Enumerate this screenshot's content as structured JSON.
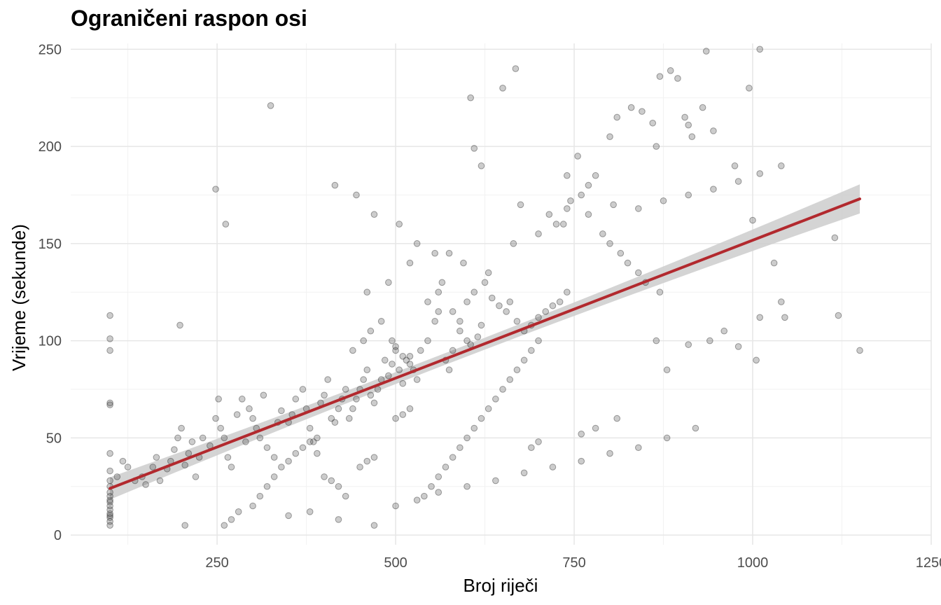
{
  "chart_data": {
    "type": "scatter",
    "title": "Ograničeni raspon osi",
    "xlabel": "Broj riječi",
    "ylabel": "Vrijeme (sekunde)",
    "xlim": [
      45,
      1250
    ],
    "ylim": [
      -5,
      253
    ],
    "x_ticks": [
      "250",
      "500",
      "750",
      "1000",
      "1250"
    ],
    "y_ticks": [
      "0",
      "50",
      "100",
      "150",
      "200",
      "250"
    ],
    "grid": true,
    "point_color": "#333333",
    "point_opacity": 0.25,
    "smooth": {
      "method": "linear",
      "color": "#b2292e",
      "band_color": "#cccccc",
      "x": [
        100,
        1150
      ],
      "y": [
        24,
        173
      ],
      "band_halfwidth": [
        3,
        7.5
      ]
    },
    "points": {
      "x": [
        100,
        100,
        100,
        100,
        100,
        100,
        100,
        100,
        100,
        100,
        100,
        100,
        100,
        100,
        100,
        100,
        100,
        100,
        100,
        100,
        110,
        118,
        125,
        135,
        145,
        150,
        160,
        165,
        170,
        180,
        185,
        190,
        195,
        200,
        205,
        210,
        215,
        220,
        225,
        230,
        198,
        205,
        240,
        248,
        255,
        260,
        265,
        270,
        278,
        285,
        290,
        295,
        300,
        305,
        310,
        315,
        320,
        330,
        335,
        340,
        248,
        252,
        262,
        325,
        350,
        355,
        360,
        370,
        375,
        380,
        385,
        390,
        395,
        400,
        405,
        410,
        415,
        420,
        425,
        430,
        435,
        440,
        445,
        450,
        455,
        460,
        465,
        470,
        475,
        480,
        485,
        490,
        495,
        500,
        505,
        510,
        515,
        520,
        525,
        530,
        440,
        455,
        465,
        480,
        495,
        500,
        510,
        520,
        535,
        545,
        555,
        560,
        570,
        575,
        580,
        590,
        600,
        605,
        615,
        620,
        545,
        560,
        565,
        580,
        590,
        600,
        610,
        625,
        635,
        645,
        655,
        660,
        670,
        680,
        690,
        700,
        710,
        720,
        730,
        740,
        605,
        610,
        620,
        650,
        668,
        675,
        715,
        725,
        740,
        745,
        760,
        770,
        780,
        790,
        800,
        815,
        825,
        840,
        850,
        870,
        740,
        755,
        800,
        810,
        830,
        845,
        860,
        865,
        870,
        885,
        895,
        905,
        910,
        915,
        930,
        935,
        945,
        975,
        995,
        1010,
        1000,
        1010,
        1030,
        1040,
        1045,
        1115,
        1120,
        1150,
        980,
        1005,
        960,
        940,
        910,
        880,
        865,
        810,
        780,
        760,
        700,
        690,
        400,
        410,
        420,
        430,
        450,
        460,
        470,
        300,
        310,
        320,
        330,
        340,
        350,
        360,
        370,
        380,
        390,
        260,
        270,
        280,
        540,
        550,
        560,
        570,
        580,
        590,
        600,
        610,
        620,
        630,
        640,
        650,
        660,
        670,
        680,
        690,
        700,
        500,
        510,
        520,
        350,
        380,
        420,
        470,
        500,
        530,
        560,
        600,
        640,
        680,
        720,
        760,
        800,
        840,
        880,
        920,
        460,
        490,
        520,
        555,
        415,
        445,
        470,
        505,
        530,
        575,
        595,
        630,
        665,
        700,
        735,
        770,
        805,
        840,
        875,
        910,
        945,
        980,
        1010,
        1040
      ],
      "y": [
        5,
        7,
        9,
        11,
        13,
        15,
        17,
        20,
        22,
        25,
        28,
        33,
        42,
        67,
        68,
        95,
        101,
        113,
        10,
        18,
        30,
        38,
        35,
        28,
        30,
        26,
        35,
        40,
        28,
        34,
        38,
        44,
        50,
        55,
        36,
        42,
        48,
        30,
        40,
        50,
        108,
        5,
        46,
        60,
        55,
        50,
        40,
        35,
        62,
        70,
        48,
        65,
        60,
        55,
        50,
        72,
        45,
        40,
        58,
        64,
        178,
        70,
        160,
        221,
        58,
        62,
        70,
        75,
        65,
        55,
        48,
        42,
        68,
        72,
        80,
        60,
        58,
        65,
        70,
        75,
        60,
        65,
        70,
        75,
        80,
        85,
        72,
        68,
        75,
        80,
        90,
        82,
        88,
        95,
        85,
        78,
        90,
        92,
        85,
        80,
        95,
        100,
        105,
        110,
        100,
        97,
        92,
        88,
        95,
        100,
        110,
        115,
        90,
        85,
        95,
        105,
        100,
        98,
        102,
        108,
        120,
        125,
        130,
        115,
        110,
        120,
        125,
        130,
        122,
        118,
        115,
        120,
        110,
        105,
        108,
        112,
        115,
        118,
        120,
        125,
        225,
        199,
        190,
        230,
        240,
        170,
        165,
        160,
        168,
        172,
        175,
        180,
        185,
        155,
        150,
        145,
        140,
        135,
        130,
        125,
        185,
        195,
        205,
        215,
        220,
        218,
        212,
        200,
        236,
        239,
        235,
        215,
        211,
        205,
        220,
        249,
        208,
        190,
        230,
        250,
        162,
        112,
        140,
        120,
        112,
        153,
        113,
        95,
        97,
        90,
        105,
        100,
        98,
        85,
        100,
        60,
        55,
        52,
        48,
        45,
        30,
        28,
        25,
        20,
        35,
        38,
        40,
        15,
        20,
        25,
        30,
        35,
        38,
        42,
        45,
        48,
        50,
        5,
        8,
        12,
        20,
        25,
        30,
        35,
        40,
        45,
        50,
        55,
        60,
        65,
        70,
        75,
        80,
        85,
        90,
        95,
        100,
        60,
        62,
        65,
        10,
        12,
        8,
        5,
        15,
        18,
        22,
        25,
        28,
        32,
        35,
        38,
        42,
        45,
        50,
        55,
        125,
        130,
        140,
        145,
        180,
        175,
        165,
        160,
        150,
        145,
        140,
        135,
        150,
        155,
        160,
        165,
        170,
        168,
        172,
        175,
        178,
        182,
        186,
        190
      ]
    }
  }
}
